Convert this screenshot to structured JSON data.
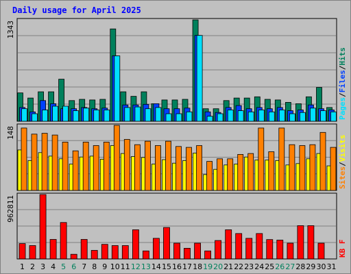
{
  "title": "Daily usage for April 2025",
  "chart_data": [
    {
      "type": "bar",
      "panel": "pages-files-hits",
      "categories": [
        "1",
        "2",
        "3",
        "4",
        "5",
        "6",
        "7",
        "8",
        "9",
        "10",
        "11",
        "12",
        "13",
        "14",
        "15",
        "16",
        "17",
        "18",
        "19",
        "20",
        "21",
        "22",
        "23",
        "24",
        "25",
        "26",
        "27",
        "28",
        "29",
        "30",
        "31"
      ],
      "ymax_label": "1343",
      "ylim": [
        0,
        1343
      ],
      "series": [
        {
          "name": "Hits",
          "color": "#00805c",
          "values": [
            376,
            308,
            390,
            390,
            557,
            274,
            290,
            282,
            290,
            1223,
            390,
            330,
            390,
            232,
            282,
            282,
            290,
            1343,
            166,
            166,
            274,
            308,
            308,
            324,
            290,
            282,
            250,
            232,
            324,
            448,
            182
          ]
        },
        {
          "name": "Files",
          "color": "#0040ff",
          "values": [
            182,
            124,
            274,
            232,
            166,
            166,
            182,
            166,
            174,
            867,
            216,
            216,
            224,
            232,
            166,
            166,
            174,
            1137,
            124,
            116,
            182,
            208,
            166,
            182,
            166,
            182,
            140,
            150,
            216,
            166,
            150
          ]
        },
        {
          "name": "Pages",
          "color": "#00e0ff",
          "values": [
            166,
            100,
            150,
            200,
            200,
            140,
            174,
            150,
            150,
            867,
            182,
            190,
            166,
            182,
            100,
            100,
            124,
            1137,
            66,
            100,
            150,
            140,
            124,
            150,
            124,
            150,
            100,
            116,
            174,
            140,
            124
          ]
        }
      ],
      "legend_vertical": [
        "Pages",
        "Files",
        "Hits"
      ],
      "legend_colors": [
        "#00e0ff",
        "#0040ff",
        "#00805c"
      ]
    },
    {
      "type": "bar",
      "panel": "visits-sites",
      "categories": [
        "1",
        "2",
        "3",
        "4",
        "5",
        "6",
        "7",
        "8",
        "9",
        "10",
        "11",
        "12",
        "13",
        "14",
        "15",
        "16",
        "17",
        "18",
        "19",
        "20",
        "21",
        "22",
        "23",
        "24",
        "25",
        "26",
        "27",
        "28",
        "29",
        "30",
        "31"
      ],
      "ymax_label": "148",
      "ylim": [
        0,
        148
      ],
      "series": [
        {
          "name": "Visits",
          "color": "#ffff00",
          "values": [
            92,
            68,
            86,
            78,
            72,
            60,
            76,
            78,
            71,
            102,
            84,
            77,
            75,
            60,
            70,
            62,
            68,
            85,
            36,
            48,
            58,
            60,
            76,
            69,
            69,
            68,
            58,
            61,
            72,
            84,
            56
          ]
        },
        {
          "name": "Sites",
          "color": "#ff8000",
          "values": [
            142,
            128,
            130,
            126,
            110,
            90,
            110,
            102,
            110,
            148,
            116,
            104,
            112,
            102,
            112,
            100,
            98,
            102,
            66,
            72,
            72,
            82,
            84,
            142,
            88,
            142,
            104,
            102,
            104,
            132,
            98
          ]
        }
      ],
      "legend_vertical": [
        "Sites",
        "Visits"
      ],
      "legend_colors": [
        "#ff8000",
        "#ffff00"
      ]
    },
    {
      "type": "bar",
      "panel": "kbytes",
      "categories": [
        "1",
        "2",
        "3",
        "4",
        "5",
        "6",
        "7",
        "8",
        "9",
        "10",
        "11",
        "12",
        "13",
        "14",
        "15",
        "16",
        "17",
        "18",
        "19",
        "20",
        "21",
        "22",
        "23",
        "24",
        "25",
        "26",
        "27",
        "28",
        "29",
        "30",
        "31"
      ],
      "ymax_label": "962811",
      "ylim": [
        0,
        962811
      ],
      "series": [
        {
          "name": "KB F",
          "color": "#ff0000",
          "values": [
            229000,
            200000,
            962811,
            292000,
            545000,
            70000,
            292000,
            128000,
            218000,
            200000,
            200000,
            436000,
            120000,
            308000,
            470000,
            236000,
            160000,
            236000,
            120000,
            276000,
            436000,
            380000,
            308000,
            380000,
            290000,
            282000,
            236000,
            498000,
            498000,
            236000,
            0
          ]
        }
      ],
      "legend_vertical": [
        "KB F"
      ],
      "legend_colors": [
        "#ff0000"
      ]
    }
  ],
  "weekend_days": [
    "5",
    "6",
    "12",
    "13",
    "19",
    "20",
    "26",
    "27"
  ],
  "colors": {
    "title": "#0000ff",
    "weekday_label": "#000000",
    "weekend_label": "#00805c",
    "panel_bg": "#c0c0c0",
    "gridline": "#808080",
    "separator": "#000000"
  }
}
